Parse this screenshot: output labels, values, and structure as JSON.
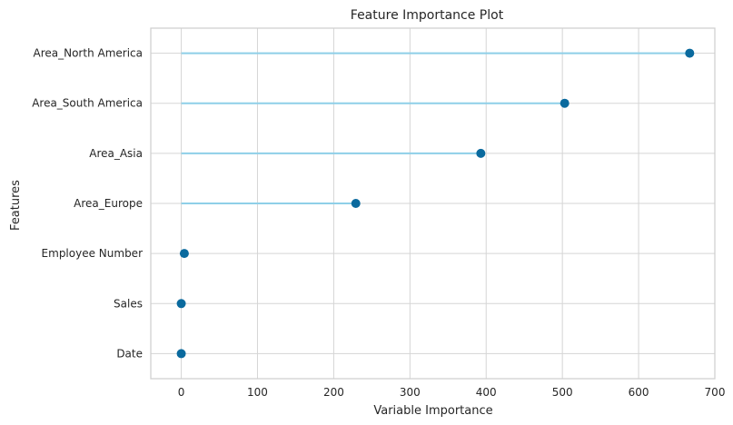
{
  "chart_data": {
    "type": "lollipop",
    "title": "Feature Importance Plot",
    "xlabel": "Variable Importance",
    "ylabel": "Features",
    "xlim": [
      -40,
      700
    ],
    "xticks": [
      0,
      100,
      200,
      300,
      400,
      500,
      600,
      700
    ],
    "grid": true,
    "categories": [
      "Area_North America",
      "Area_South America",
      "Area_Asia",
      "Area_Europe",
      "Employee Number",
      "Sales",
      "Date"
    ],
    "values": [
      667,
      503,
      393,
      229,
      4,
      0,
      0
    ],
    "colors": {
      "stem": "#8ecfe8",
      "marker": "#0a6a9e",
      "grid": "#d5d5d5",
      "frame": "#cfcfcf",
      "text": "#262626"
    }
  }
}
